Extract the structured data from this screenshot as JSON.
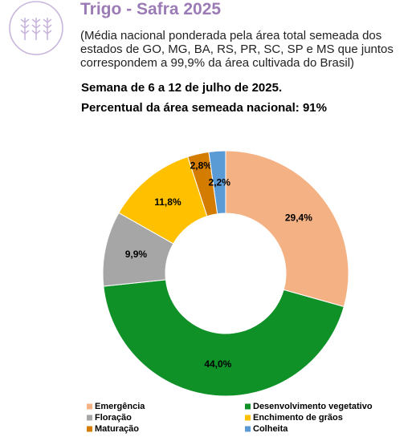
{
  "chart_data": {
    "type": "donut",
    "title": "Trigo - Safra 2025",
    "subtitle": "(Média nacional ponderada pela área total semeada dos estados de GO, MG, BA, RS, PR, SC, SP e MS que juntos correspondem a 99,9% da área cultivada do Brasil)",
    "annotations": [
      "Semana de 6 a 12 de julho de 2025.",
      "Percentual da área semeada nacional: 91%"
    ],
    "categories": [
      "Emergência",
      "Desenvolvimento vegetativo",
      "Floração",
      "Enchimento de grãos",
      "Maturação",
      "Colheita"
    ],
    "values": [
      29.4,
      44.0,
      9.9,
      11.8,
      2.8,
      2.2
    ],
    "value_labels": [
      "29,4%",
      "44,0%",
      "9,9%",
      "11,8%",
      "2,8%",
      "2,2%"
    ],
    "colors": [
      "#f4b183",
      "#0f9128",
      "#a6a6a6",
      "#ffc000",
      "#d47c00",
      "#5b9bd5"
    ]
  }
}
